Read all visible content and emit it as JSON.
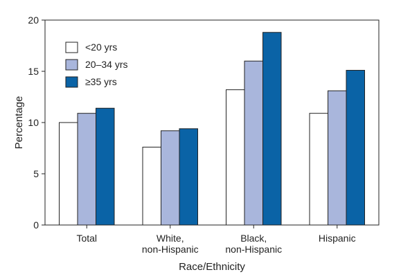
{
  "chart_data": {
    "type": "bar",
    "title": "",
    "xlabel": "Race/Ethnicity",
    "ylabel": "Percentage",
    "ylim": [
      0,
      20
    ],
    "yticks": [
      0,
      5,
      10,
      15,
      20
    ],
    "grid": false,
    "legend_position": "top-left",
    "categories": [
      "Total",
      "White,\nnon-Hispanic",
      "Black,\nnon-Hispanic",
      "Hispanic"
    ],
    "series": [
      {
        "name": "<20 yrs",
        "color": "#ffffff",
        "values": [
          10.0,
          7.6,
          13.2,
          10.9
        ]
      },
      {
        "name": "20–34 yrs",
        "color": "#a9b6dc",
        "values": [
          10.9,
          9.2,
          16.0,
          13.1
        ]
      },
      {
        "name": "≥35 yrs",
        "color": "#0a63a6",
        "values": [
          11.4,
          9.4,
          18.8,
          15.1
        ]
      }
    ]
  }
}
